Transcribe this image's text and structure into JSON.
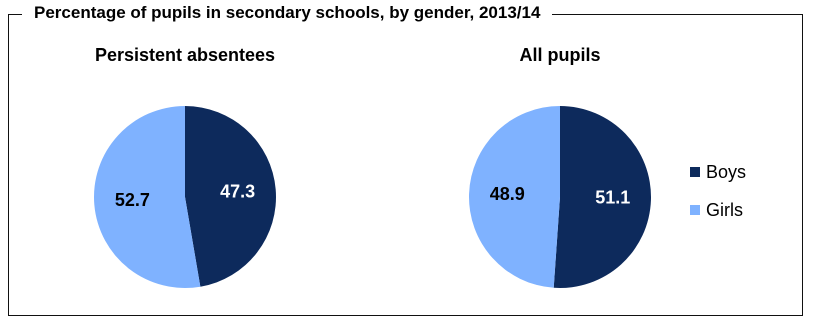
{
  "chart_data": [
    {
      "type": "pie",
      "title": "Percentage of pupils in secondary schools, by gender, 2013/14",
      "subtitle": "Persistent absentees",
      "categories": [
        "Boys",
        "Girls"
      ],
      "values": [
        47.3,
        52.7
      ]
    },
    {
      "type": "pie",
      "title": "Percentage of pupils in secondary schools, by gender, 2013/14",
      "subtitle": "All pupils",
      "categories": [
        "Boys",
        "Girls"
      ],
      "values": [
        51.1,
        48.9
      ]
    }
  ],
  "figure": {
    "title": "Percentage of pupils in secondary schools, by gender, 2013/14",
    "pie_titles": [
      "Persistent absentees",
      "All pupils"
    ]
  },
  "legend": {
    "items": [
      {
        "label": "Boys",
        "color": "#0d2a5c"
      },
      {
        "label": "Girls",
        "color": "#7fb2ff"
      }
    ]
  },
  "colors": {
    "boys": "#0d2a5c",
    "girls": "#7fb2ff",
    "boys_label": "#ffffff",
    "girls_label": "#000000"
  }
}
